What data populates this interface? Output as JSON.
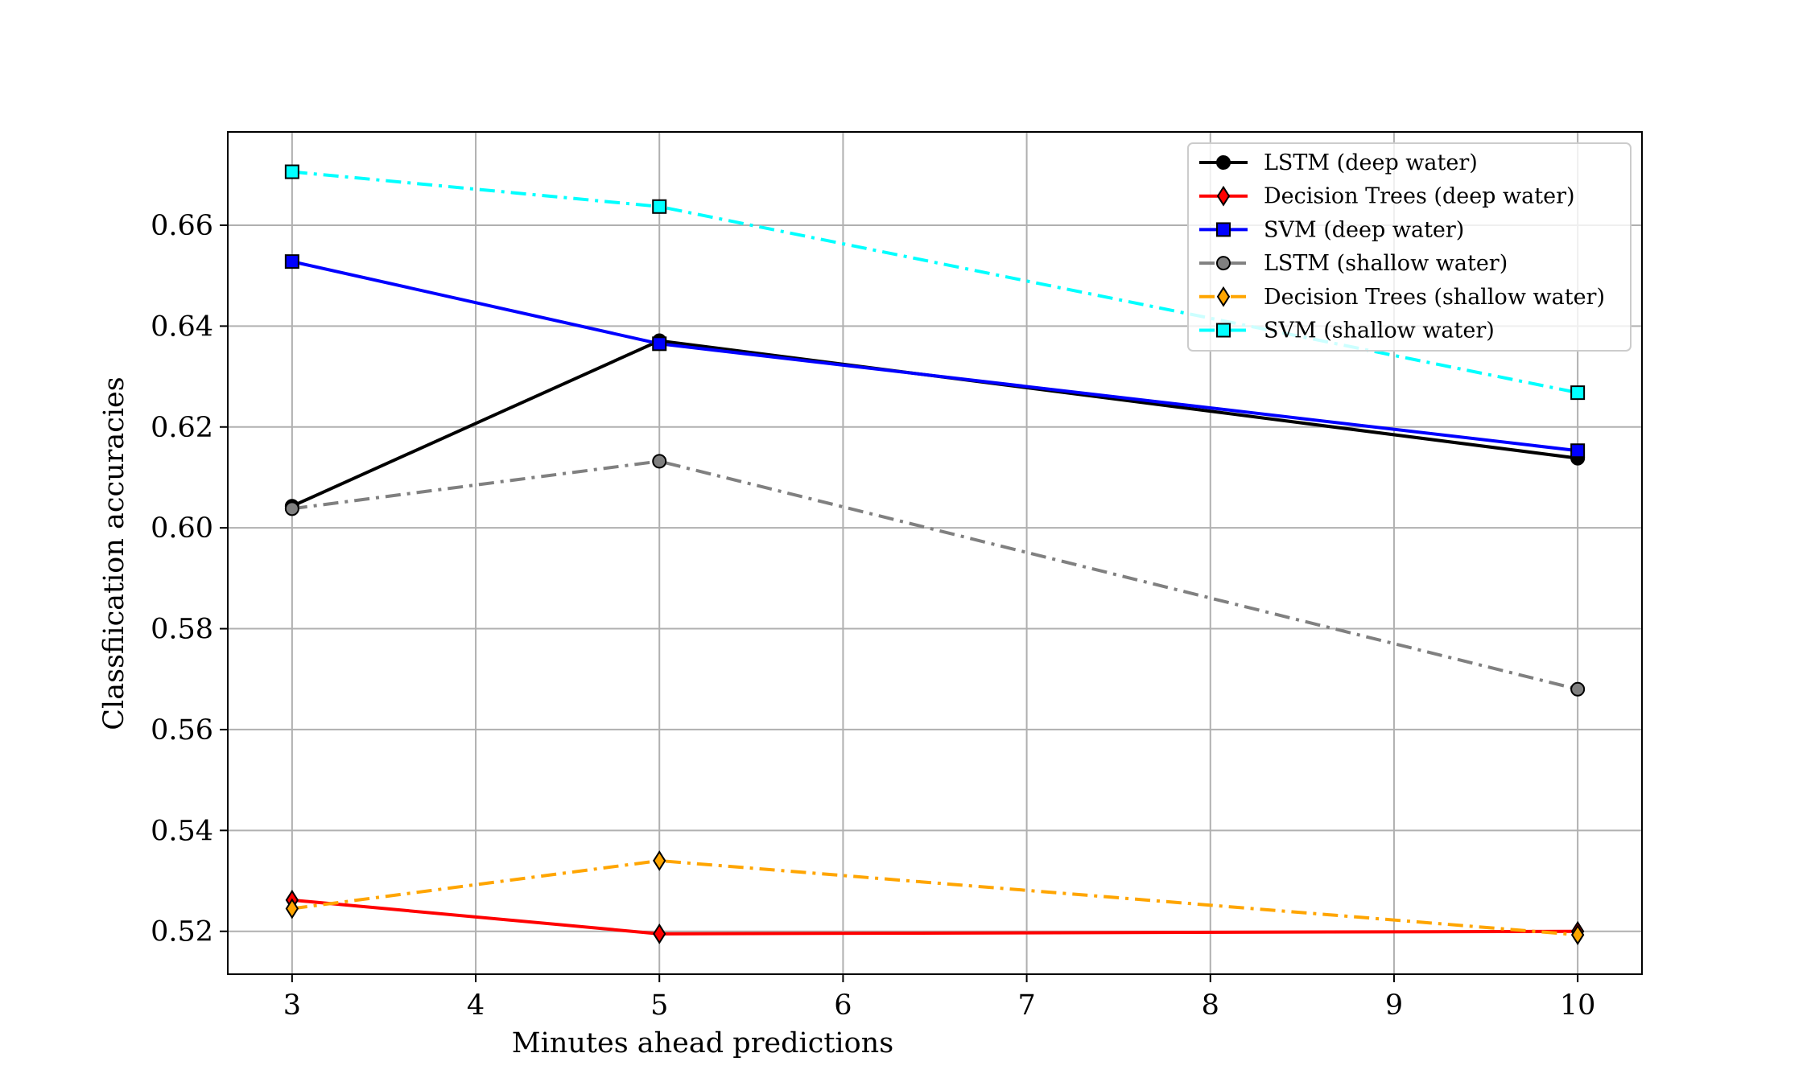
{
  "chart_data": {
    "type": "line",
    "title": "",
    "xlabel": "Minutes ahead predictions",
    "ylabel": "Classfiication accuracies",
    "xlim": [
      2.65,
      10.35
    ],
    "ylim": [
      0.5115,
      0.6785
    ],
    "xticks": [
      "3",
      "4",
      "5",
      "6",
      "7",
      "8",
      "9",
      "10"
    ],
    "yticks": [
      "0.52",
      "0.54",
      "0.56",
      "0.58",
      "0.60",
      "0.62",
      "0.64",
      "0.66"
    ],
    "grid": true,
    "legend_position": "top-right",
    "x": [
      3,
      5,
      10
    ],
    "series": [
      {
        "name": "LSTM (deep water)",
        "values": [
          0.6043,
          0.6371,
          0.6138
        ],
        "color": "#000000",
        "marker_fill": "#000000",
        "marker": "circle",
        "dash": "solid"
      },
      {
        "name": "Decision Trees (deep water)",
        "values": [
          0.5262,
          0.5195,
          0.52
        ],
        "color": "#ff0000",
        "marker_fill": "#ff0000",
        "marker": "thin-diamond",
        "dash": "solid"
      },
      {
        "name": "SVM (deep water)",
        "values": [
          0.6528,
          0.6365,
          0.6153
        ],
        "color": "#0000ff",
        "marker_fill": "#0000ff",
        "marker": "square",
        "dash": "solid"
      },
      {
        "name": "LSTM (shallow water)",
        "values": [
          0.6038,
          0.6132,
          0.568
        ],
        "color": "#808080",
        "marker_fill": "#808080",
        "marker": "circle",
        "dash": "dashdot"
      },
      {
        "name": "Decision Trees (shallow water)",
        "values": [
          0.5245,
          0.534,
          0.5193
        ],
        "color": "#ffa500",
        "marker_fill": "#ffa500",
        "marker": "thin-diamond",
        "dash": "dashdot"
      },
      {
        "name": "SVM (shallow water)",
        "values": [
          0.6706,
          0.6637,
          0.6268
        ],
        "color": "#00ffff",
        "marker_fill": "#00ffff",
        "marker": "square",
        "dash": "dashdot"
      }
    ]
  }
}
